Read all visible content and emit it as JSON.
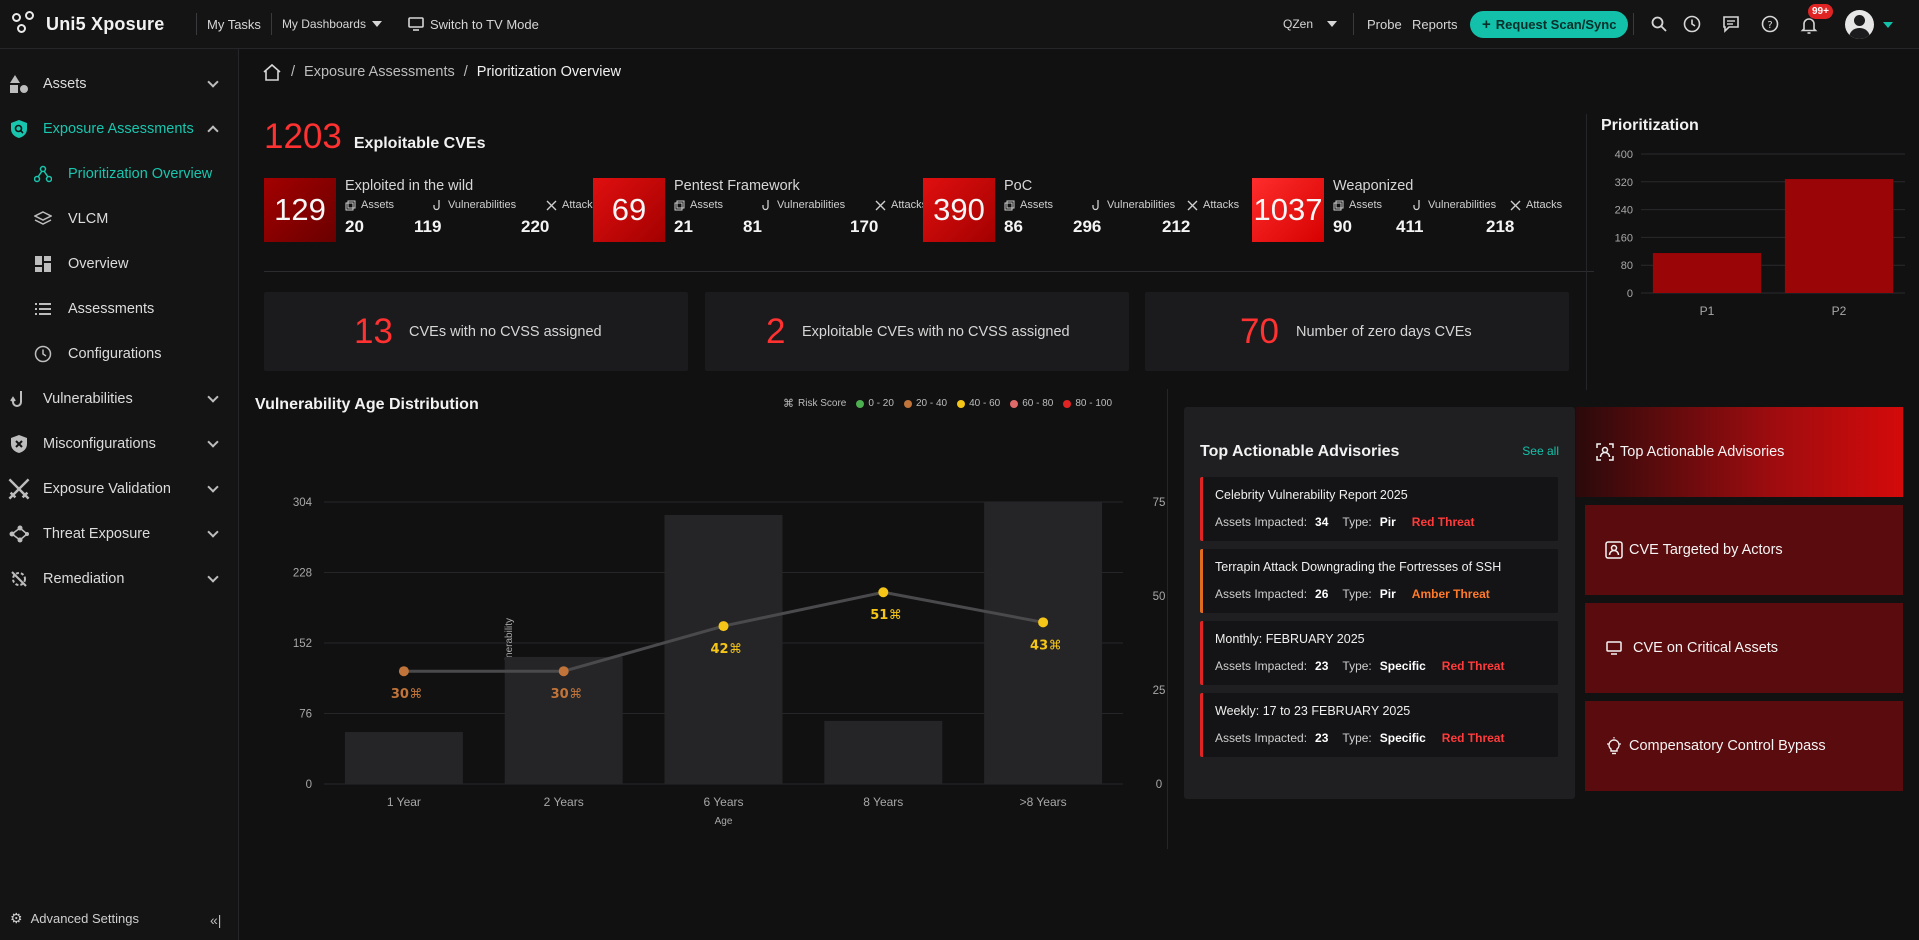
{
  "topbar": {
    "brand": "Uni5 Xposure",
    "my_tasks": "My Tasks",
    "my_dashboards": "My Dashboards",
    "tv_mode": "Switch to TV Mode",
    "tenant": "QZen",
    "probe": "Probe",
    "reports": "Reports",
    "request_scan": "Request Scan/Sync",
    "notification_badge": "99+"
  },
  "sidebar": {
    "items": [
      {
        "label": "Assets"
      },
      {
        "label": "Exposure Assessments"
      },
      {
        "label": "Vulnerabilities"
      },
      {
        "label": "Misconfigurations"
      },
      {
        "label": "Exposure Validation"
      },
      {
        "label": "Threat Exposure"
      },
      {
        "label": "Remediation"
      }
    ],
    "sub_items": [
      {
        "label": "Prioritization Overview"
      },
      {
        "label": "VLCM"
      },
      {
        "label": "Overview"
      },
      {
        "label": "Assessments"
      },
      {
        "label": "Configurations"
      }
    ],
    "advanced_settings": "Advanced Settings"
  },
  "breadcrumb": {
    "parent": "Exposure Assessments",
    "current": "Prioritization Overview",
    "sep": "/"
  },
  "summary": {
    "total": "1203",
    "label": "Exploitable CVEs",
    "metric_labels": {
      "assets": "Assets",
      "vulnerabilities": "Vulnerabilities",
      "attacks": "Attacks"
    },
    "categories": [
      {
        "count": "129",
        "title": "Exploited in the wild",
        "assets": "20",
        "vulnerabilities": "119",
        "attacks": "220"
      },
      {
        "count": "69",
        "title": "Pentest Framework",
        "assets": "21",
        "vulnerabilities": "81",
        "attacks": "170"
      },
      {
        "count": "390",
        "title": "PoC",
        "assets": "86",
        "vulnerabilities": "296",
        "attacks": "212"
      },
      {
        "count": "1037",
        "title": "Weaponized",
        "assets": "90",
        "vulnerabilities": "411",
        "attacks": "218"
      }
    ]
  },
  "stats": [
    {
      "value": "13",
      "label": "CVEs with no CVSS assigned"
    },
    {
      "value": "2",
      "label": "Exploitable CVEs with no CVSS assigned"
    },
    {
      "value": "70",
      "label": "Number of zero days CVEs"
    }
  ],
  "prioritization": {
    "title": "Prioritization"
  },
  "vad": {
    "title": "Vulnerability Age Distribution",
    "legend": [
      {
        "label": "Risk Score",
        "color": "#9a9a9a"
      },
      {
        "label": "0 - 20",
        "color": "#4caf50"
      },
      {
        "label": "20 - 40",
        "color": "#c0743a"
      },
      {
        "label": "40 - 60",
        "color": "#f5c518"
      },
      {
        "label": "60 - 80",
        "color": "#e06a6a"
      },
      {
        "label": "80 - 100",
        "color": "#e02424"
      }
    ]
  },
  "chart_data": [
    {
      "type": "bar",
      "title": "Prioritization",
      "categories": [
        "P1",
        "P2"
      ],
      "values": [
        115,
        328
      ],
      "yticks": [
        0,
        80,
        160,
        240,
        320,
        400
      ],
      "ylim": [
        0,
        400
      ],
      "grid": true
    },
    {
      "type": "bar",
      "title": "Vulnerability Age Distribution",
      "xlabel": "Age",
      "ylabel": "Vulnerability",
      "y2label": "Risk Score",
      "categories": [
        "1 Year",
        "2 Years",
        "6 Years",
        "8 Years",
        ">8 Years"
      ],
      "series": [
        {
          "values": [
            56,
            137,
            290,
            68,
            304
          ],
          "axis": "left"
        },
        {
          "values": [
            30,
            30,
            42,
            51,
            43
          ],
          "axis": "right",
          "kind": "line",
          "colors": [
            "#c0743a",
            "#c0743a",
            "#f5c518",
            "#f5c518",
            "#f5c518"
          ]
        }
      ],
      "yticks": [
        0,
        76,
        152,
        228,
        304
      ],
      "y2ticks": [
        0,
        25,
        50,
        75
      ],
      "ylim": [
        0,
        304
      ],
      "y2lim": [
        0,
        75
      ],
      "grid": true
    }
  ],
  "advisories": {
    "title": "Top Actionable Advisories",
    "see_all": "See all",
    "assets_label": "Assets Impacted:",
    "type_label": "Type:",
    "items": [
      {
        "title": "Celebrity Vulnerability Report 2025",
        "assets": "34",
        "type": "Pir",
        "threat": "Red Threat",
        "level": "red"
      },
      {
        "title": "Terrapin Attack Downgrading the Fortresses of SSH",
        "assets": "26",
        "type": "Pir",
        "threat": "Amber Threat",
        "level": "amber"
      },
      {
        "title": "Monthly: FEBRUARY 2025",
        "assets": "23",
        "type": "Specific",
        "threat": "Red Threat",
        "level": "red"
      },
      {
        "title": "Weekly: 17 to 23 FEBRUARY 2025",
        "assets": "23",
        "type": "Specific",
        "threat": "Red Threat",
        "level": "red"
      }
    ]
  },
  "right_tabs": [
    {
      "label": "Top Actionable Advisories",
      "icon": "user-scan-icon"
    },
    {
      "label": "CVE Targeted by Actors",
      "icon": "user-card-icon"
    },
    {
      "label": "CVE on Critical Assets",
      "icon": "monitor-icon"
    },
    {
      "label": "Compensatory Control Bypass",
      "icon": "bulb-icon"
    }
  ]
}
